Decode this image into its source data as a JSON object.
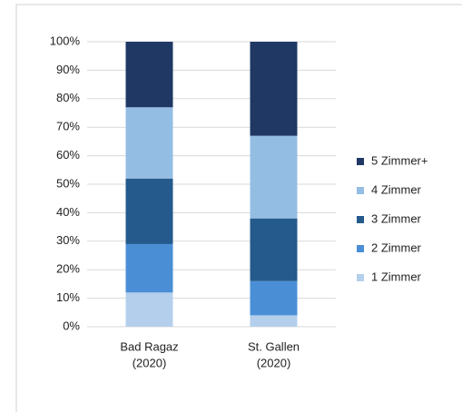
{
  "chart_data": {
    "type": "stacked_bar",
    "categories": [
      [
        "Bad Ragaz",
        "(2020)"
      ],
      [
        "St. Gallen",
        "(2020)"
      ]
    ],
    "series": [
      {
        "name": "1 Zimmer",
        "color": "#b4cfec",
        "values": [
          12,
          4
        ]
      },
      {
        "name": "2 Zimmer",
        "color": "#4a8fd6",
        "values": [
          17,
          12
        ]
      },
      {
        "name": "3 Zimmer",
        "color": "#245a8c",
        "values": [
          23,
          22
        ]
      },
      {
        "name": "4 Zimmer",
        "color": "#94bde3",
        "values": [
          25,
          29
        ]
      },
      {
        "name": "5 Zimmer+",
        "color": "#1f3864",
        "values": [
          23,
          33
        ]
      }
    ],
    "ylim": [
      0,
      100
    ],
    "yticks": [
      {
        "value": 0,
        "label": "0%"
      },
      {
        "value": 10,
        "label": "10%"
      },
      {
        "value": 20,
        "label": "20%"
      },
      {
        "value": 30,
        "label": "30%"
      },
      {
        "value": 40,
        "label": "40%"
      },
      {
        "value": 50,
        "label": "50%"
      },
      {
        "value": 60,
        "label": "60%"
      },
      {
        "value": 70,
        "label": "70%"
      },
      {
        "value": 80,
        "label": "80%"
      },
      {
        "value": 90,
        "label": "90%"
      },
      {
        "value": 100,
        "label": "100%"
      }
    ],
    "grid": true,
    "legend": "right"
  }
}
